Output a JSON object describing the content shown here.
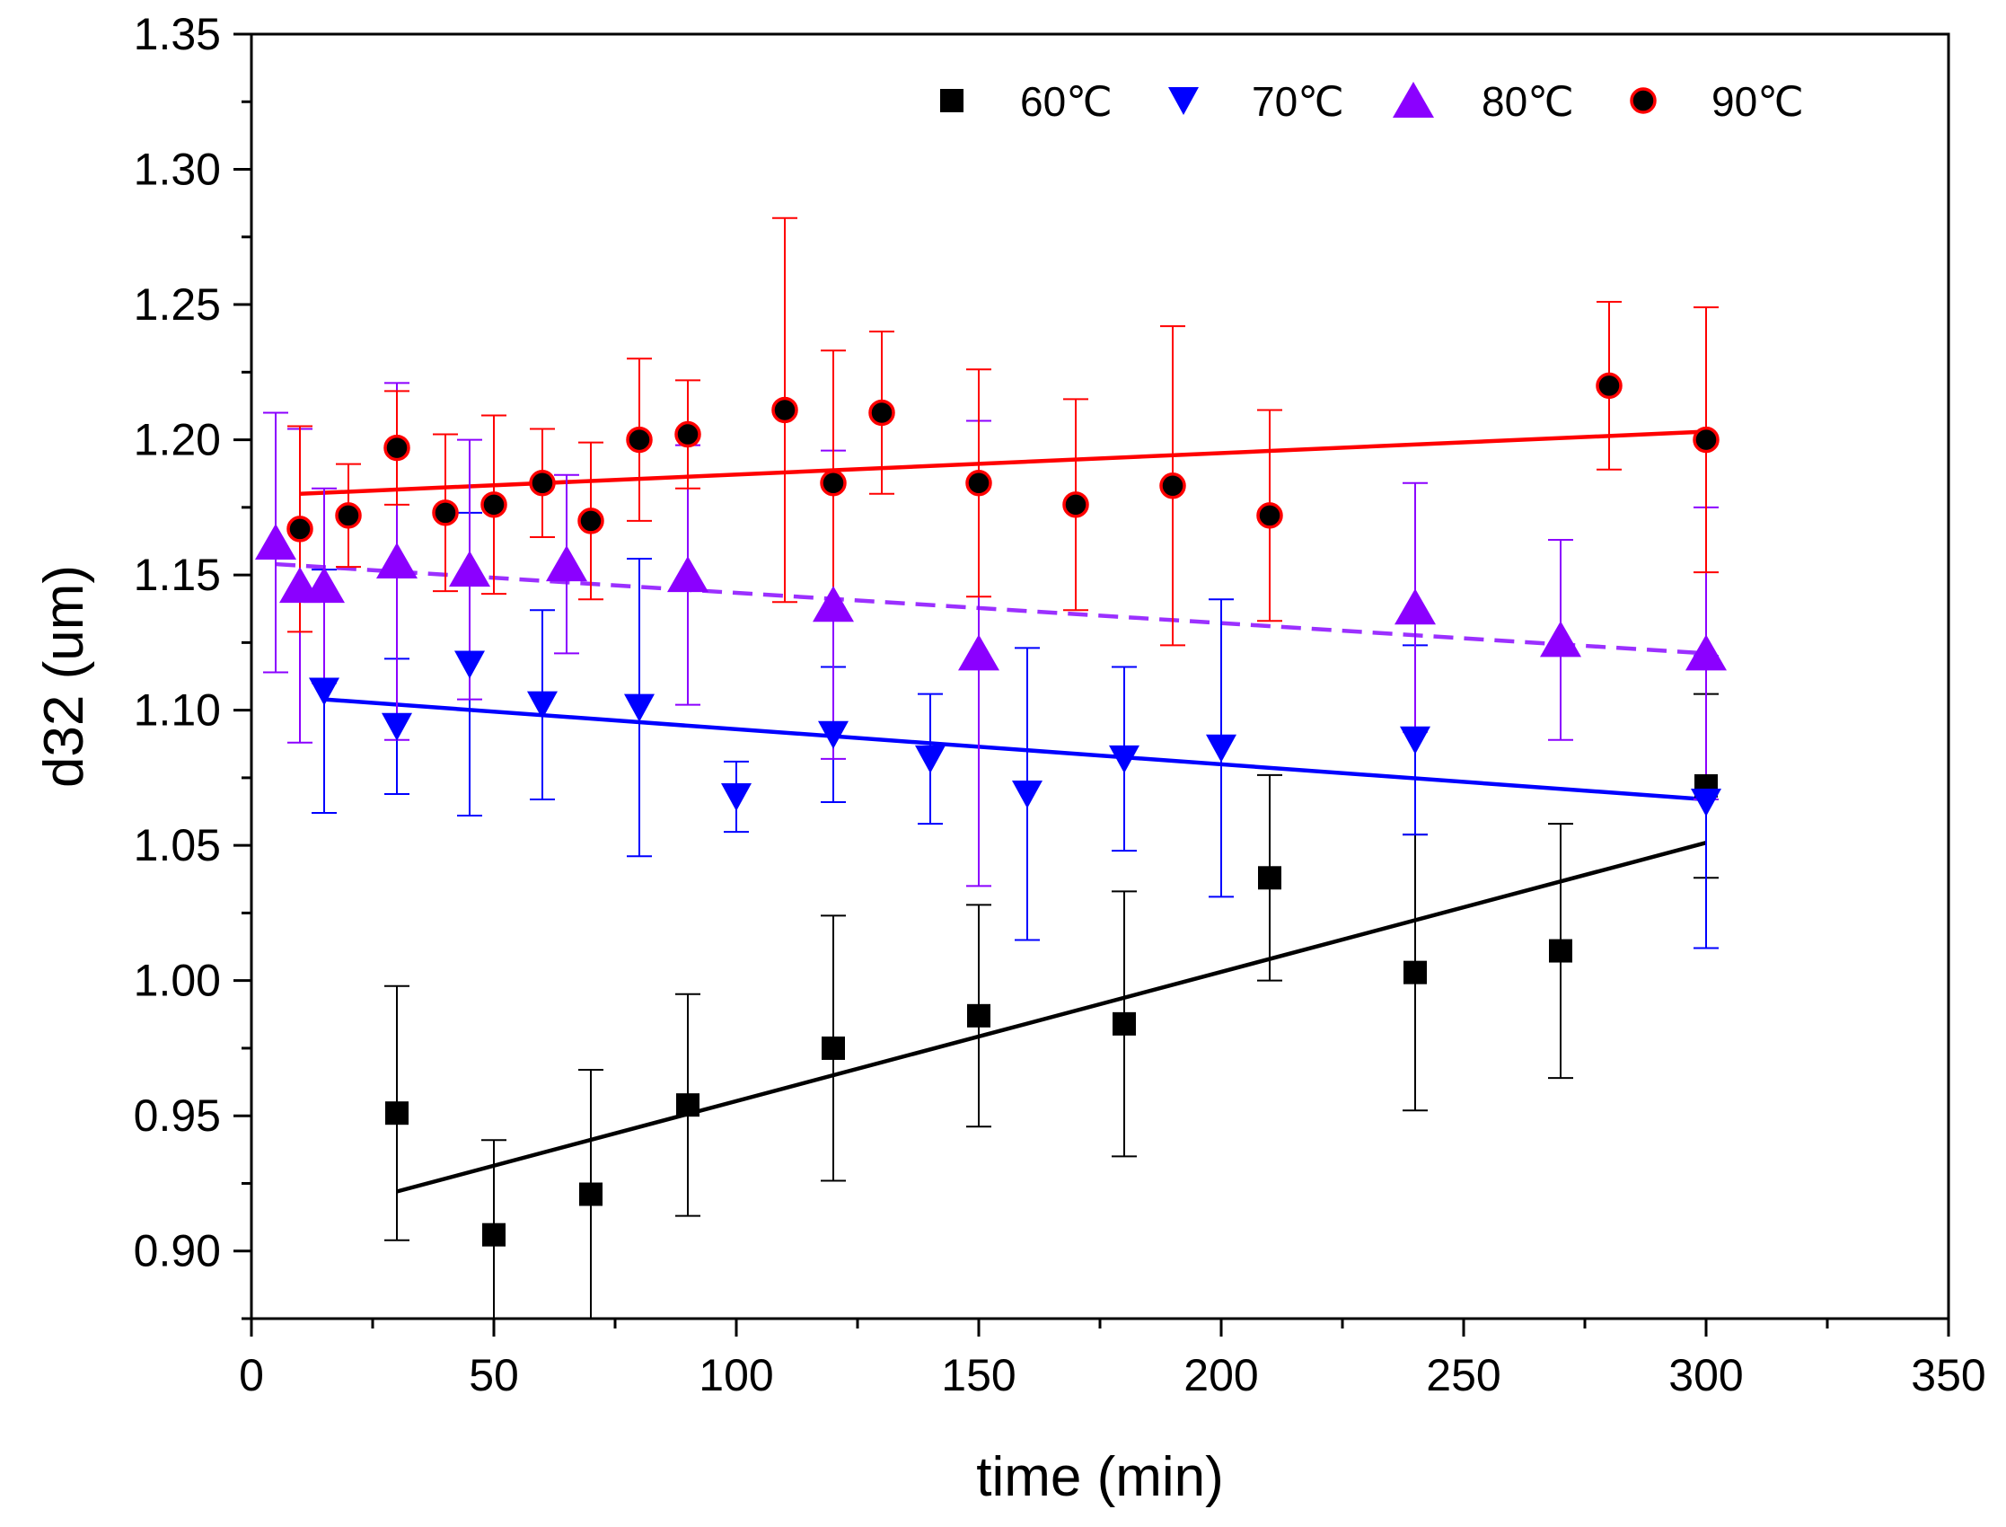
{
  "chart_data": {
    "type": "scatter",
    "title": "",
    "xlabel": "time (min)",
    "ylabel": "d32 (um)",
    "xlim": [
      0,
      350
    ],
    "ylim": [
      0.875,
      1.35
    ],
    "xticks": [
      0,
      50,
      100,
      150,
      200,
      250,
      300,
      350
    ],
    "yticks": [
      0.9,
      0.95,
      1.0,
      1.05,
      1.1,
      1.15,
      1.2,
      1.25,
      1.3,
      1.35
    ],
    "x_tick_labels": [
      "0",
      "50",
      "100",
      "150",
      "200",
      "250",
      "300",
      "350"
    ],
    "y_tick_labels": [
      "0.90",
      "0.95",
      "1.00",
      "1.05",
      "1.10",
      "1.15",
      "1.20",
      "1.25",
      "1.30",
      "1.35"
    ],
    "grid": false,
    "legend_position": "top-right",
    "series": [
      {
        "name": "60℃",
        "marker": "square",
        "color": "#000000",
        "fit_color": "#000000",
        "fit_style": "solid",
        "points": [
          {
            "x": 30,
            "y": 0.951,
            "err": 0.047
          },
          {
            "x": 50,
            "y": 0.906,
            "err": 0.035
          },
          {
            "x": 70,
            "y": 0.921,
            "err": 0.046
          },
          {
            "x": 90,
            "y": 0.954,
            "err": 0.041
          },
          {
            "x": 120,
            "y": 0.975,
            "err": 0.049
          },
          {
            "x": 150,
            "y": 0.987,
            "err": 0.041
          },
          {
            "x": 180,
            "y": 0.984,
            "err": 0.049
          },
          {
            "x": 210,
            "y": 1.038,
            "err": 0.038
          },
          {
            "x": 240,
            "y": 1.003,
            "err": 0.051
          },
          {
            "x": 270,
            "y": 1.011,
            "err": 0.047
          },
          {
            "x": 300,
            "y": 1.072,
            "err": 0.034
          }
        ],
        "fit": {
          "x": [
            30,
            300
          ],
          "y": [
            0.922,
            1.051
          ]
        }
      },
      {
        "name": "70℃",
        "marker": "triangle-down",
        "color": "#0000ff",
        "fit_color": "#0000ff",
        "fit_style": "solid",
        "points": [
          {
            "x": 15,
            "y": 1.107,
            "err": 0.045
          },
          {
            "x": 30,
            "y": 1.094,
            "err": 0.025
          },
          {
            "x": 45,
            "y": 1.117,
            "err": 0.056
          },
          {
            "x": 60,
            "y": 1.102,
            "err": 0.035
          },
          {
            "x": 80,
            "y": 1.101,
            "err": 0.055
          },
          {
            "x": 100,
            "y": 1.068,
            "err": 0.013
          },
          {
            "x": 120,
            "y": 1.091,
            "err": 0.025
          },
          {
            "x": 140,
            "y": 1.082,
            "err": 0.024
          },
          {
            "x": 160,
            "y": 1.069,
            "err": 0.054
          },
          {
            "x": 180,
            "y": 1.082,
            "err": 0.034
          },
          {
            "x": 200,
            "y": 1.086,
            "err": 0.055
          },
          {
            "x": 240,
            "y": 1.089,
            "err": 0.035
          },
          {
            "x": 300,
            "y": 1.066,
            "err": 0.054
          }
        ],
        "fit": {
          "x": [
            15,
            300
          ],
          "y": [
            1.104,
            1.067
          ]
        }
      },
      {
        "name": "80℃",
        "marker": "triangle-up",
        "color": "#8b00ff",
        "fit_color": "#9b30ff",
        "fit_style": "dashed",
        "points": [
          {
            "x": 5,
            "y": 1.162,
            "err": 0.048
          },
          {
            "x": 10,
            "y": 1.146,
            "err": 0.058
          },
          {
            "x": 15,
            "y": 1.146,
            "err": 0.036
          },
          {
            "x": 30,
            "y": 1.155,
            "err": 0.066
          },
          {
            "x": 45,
            "y": 1.152,
            "err": 0.048
          },
          {
            "x": 65,
            "y": 1.154,
            "err": 0.033
          },
          {
            "x": 90,
            "y": 1.15,
            "err": 0.048
          },
          {
            "x": 120,
            "y": 1.139,
            "err": 0.057
          },
          {
            "x": 150,
            "y": 1.121,
            "err": 0.086
          },
          {
            "x": 240,
            "y": 1.138,
            "err": 0.046
          },
          {
            "x": 270,
            "y": 1.126,
            "err": 0.037
          },
          {
            "x": 300,
            "y": 1.121,
            "err": 0.054
          }
        ],
        "fit": {
          "x": [
            5,
            300
          ],
          "y": [
            1.154,
            1.121
          ]
        }
      },
      {
        "name": "90℃",
        "marker": "circle",
        "color": "#ff0000",
        "fill": "#000000",
        "fit_color": "#ff0000",
        "fit_style": "solid",
        "points": [
          {
            "x": 10,
            "y": 1.167,
            "err": 0.038
          },
          {
            "x": 20,
            "y": 1.172,
            "err": 0.019
          },
          {
            "x": 30,
            "y": 1.197,
            "err": 0.021
          },
          {
            "x": 40,
            "y": 1.173,
            "err": 0.029
          },
          {
            "x": 50,
            "y": 1.176,
            "err": 0.033
          },
          {
            "x": 60,
            "y": 1.184,
            "err": 0.02
          },
          {
            "x": 70,
            "y": 1.17,
            "err": 0.029
          },
          {
            "x": 80,
            "y": 1.2,
            "err": 0.03
          },
          {
            "x": 90,
            "y": 1.202,
            "err": 0.02
          },
          {
            "x": 110,
            "y": 1.211,
            "err": 0.071
          },
          {
            "x": 120,
            "y": 1.184,
            "err": 0.049
          },
          {
            "x": 130,
            "y": 1.21,
            "err": 0.03
          },
          {
            "x": 150,
            "y": 1.184,
            "err": 0.042
          },
          {
            "x": 170,
            "y": 1.176,
            "err": 0.039
          },
          {
            "x": 190,
            "y": 1.183,
            "err": 0.059
          },
          {
            "x": 210,
            "y": 1.172,
            "err": 0.039
          },
          {
            "x": 280,
            "y": 1.22,
            "err": 0.031
          },
          {
            "x": 300,
            "y": 1.2,
            "err": 0.049
          }
        ],
        "fit": {
          "x": [
            10,
            300
          ],
          "y": [
            1.18,
            1.203
          ]
        }
      }
    ]
  }
}
